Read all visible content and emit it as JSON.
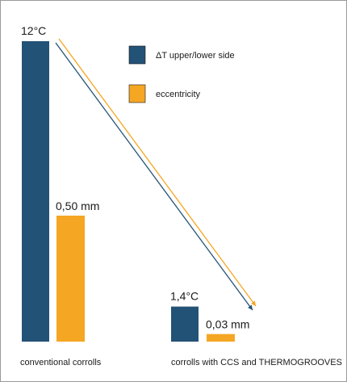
{
  "chart_data": {
    "type": "bar",
    "categories": [
      "conventional corrolls",
      "corrolls with CCS and THERMOGROOVES"
    ],
    "series": [
      {
        "name": "ΔT upper/lower side",
        "values": [
          12,
          1.4
        ],
        "color": "#235277"
      },
      {
        "name": "eccentricity",
        "values": [
          0.5,
          0.03
        ],
        "color": "#f5a623"
      }
    ],
    "data_labels": {
      "dt": [
        "12°C",
        "1,4°C"
      ],
      "ecc": [
        "0,50 mm",
        "0,03 mm"
      ]
    },
    "legend_placement": "top-center",
    "grid": false,
    "arrow_colors": [
      "#f5a623",
      "#235277"
    ]
  }
}
